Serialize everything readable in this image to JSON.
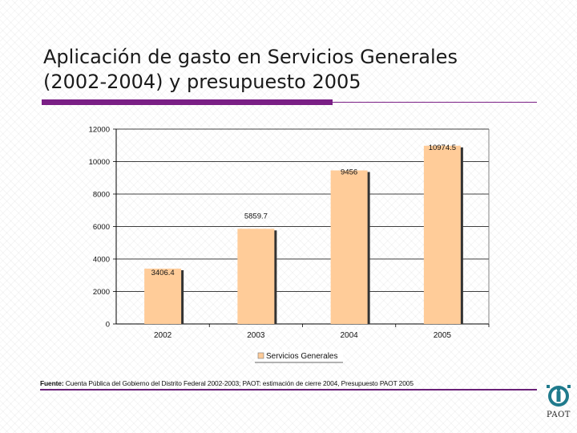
{
  "slide": {
    "title_line1": "Aplicación de gasto en Servicios Generales",
    "title_line2": "(2002-2004) y presupuesto 2005",
    "source_label": "Fuente:",
    "source_text": "Cuenta Pública del Gobierno del Distrito Federal 2002-2003; PAOT: estimación de cierre 2004, Presupuesto PAOT 2005",
    "logo_text": "PAOT",
    "accent_color": "#7a1f85"
  },
  "chart_data": {
    "type": "bar",
    "title": "",
    "xlabel": "",
    "ylabel": "",
    "categories": [
      "2002",
      "2003",
      "2004",
      "2005"
    ],
    "series": [
      {
        "name": "Servicios Generales",
        "values": [
          3406.4,
          5859.7,
          9456,
          10974.5
        ],
        "data_labels": [
          "3406.4",
          "5859.7",
          "9456",
          "10974.5"
        ],
        "color": "#ffcc99"
      }
    ],
    "ylim": [
      0,
      12000
    ],
    "yticks": [
      0,
      2000,
      4000,
      6000,
      8000,
      10000,
      12000
    ],
    "grid": true,
    "legend_position": "bottom"
  }
}
